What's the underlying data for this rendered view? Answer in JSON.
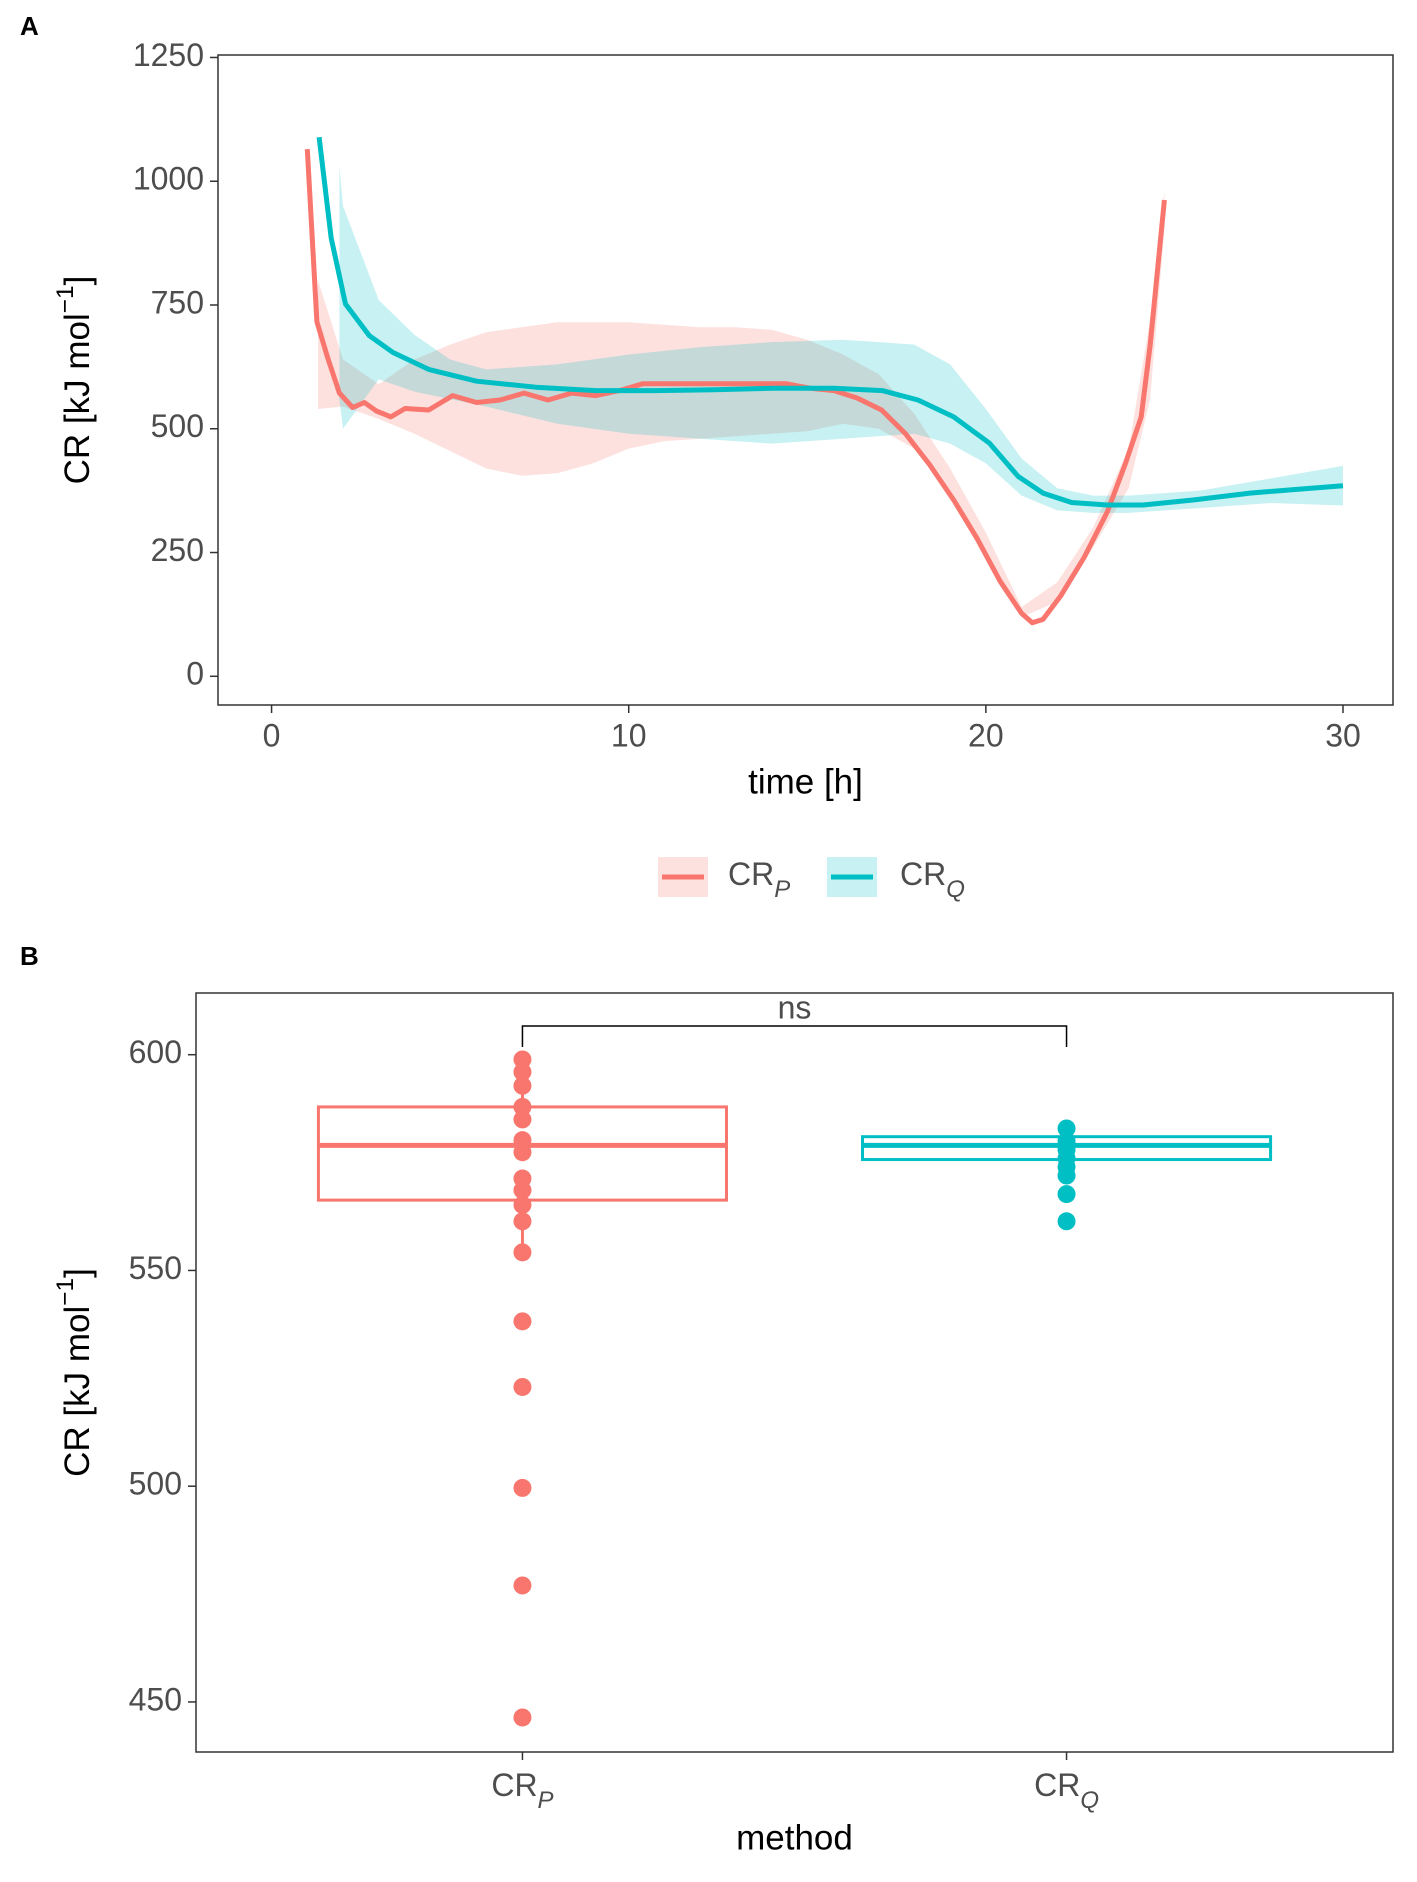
{
  "chart_data": [
    {
      "type": "line",
      "panel": "A",
      "x_label": "time [h]",
      "y_label": [
        "CR [kJ mol",
        "−1",
        "]"
      ],
      "xlim": [
        -1.5,
        31.4
      ],
      "ylim": [
        -58,
        1255
      ],
      "xticks": [
        0,
        10,
        20,
        30
      ],
      "yticks": [
        0,
        250,
        500,
        750,
        1000,
        1250
      ],
      "grid": false,
      "legend": "bottom",
      "series": [
        {
          "name": [
            "CR",
            "P"
          ],
          "color": "#f8766d",
          "x": [
            1.0,
            1.27,
            1.57,
            1.9,
            2.27,
            2.6,
            2.93,
            3.34,
            3.74,
            4.4,
            5.07,
            5.74,
            6.4,
            7.07,
            7.74,
            8.4,
            9.08,
            9.74,
            10.4,
            11.08,
            11.74,
            12.4,
            13.08,
            13.75,
            14.4,
            15.08,
            15.75,
            16.4,
            17.08,
            17.75,
            18.42,
            19.1,
            19.75,
            20.4,
            21.0,
            21.3,
            21.6,
            22.1,
            22.75,
            23.4,
            23.9,
            24.35,
            24.6,
            25.0
          ],
          "values": [
            1065,
            716,
            644,
            572,
            543,
            553,
            536,
            524,
            541,
            538,
            567,
            553,
            558,
            572,
            558,
            572,
            567,
            577,
            591,
            591,
            591,
            591,
            591,
            591,
            591,
            582,
            577,
            562,
            538,
            490,
            428,
            356,
            279,
            192,
            127,
            108,
            115,
            163,
            240,
            332,
            428,
            524,
            668,
            962
          ],
          "band": {
            "x": [
              1.3,
              2,
              3,
              4,
              5,
              6,
              7,
              8,
              9,
              10,
              11,
              12,
              13,
              14,
              15,
              16,
              17,
              18,
              19,
              20,
              21,
              22,
              23,
              24,
              24.6,
              25
            ],
            "lower": [
              540,
              545,
              520,
              490,
              455,
              420,
              405,
              410,
              430,
              460,
              475,
              480,
              485,
              490,
              495,
              510,
              500,
              460,
              370,
              250,
              120,
              150,
              260,
              380,
              560,
              900
            ],
            "upper": [
              800,
              640,
              590,
              640,
              670,
              695,
              705,
              715,
              715,
              715,
              710,
              705,
              705,
              700,
              680,
              650,
              610,
              530,
              420,
              290,
              140,
              190,
              300,
              460,
              720,
              980
            ]
          }
        },
        {
          "name": [
            "CR",
            "Q"
          ],
          "color": "#00bfc4",
          "x": [
            1.33,
            1.67,
            2.07,
            2.74,
            3.4,
            4.4,
            5.74,
            7.4,
            9.08,
            10.75,
            12.4,
            14.08,
            15.75,
            17.1,
            18.1,
            19.1,
            20.1,
            20.9,
            21.6,
            22.4,
            23.4,
            24.4,
            25.8,
            27.4,
            29.1,
            30.0
          ],
          "values": [
            1089,
            885,
            752,
            688,
            654,
            620,
            596,
            584,
            577,
            577,
            579,
            582,
            582,
            577,
            558,
            524,
            471,
            404,
            370,
            351,
            346,
            346,
            356,
            370,
            380,
            385
          ],
          "band": {
            "x": [
              1.9,
              2,
              3,
              4,
              5,
              6,
              8,
              10,
              12,
              14,
              16,
              18,
              19,
              20,
              21,
              22,
              23,
              24,
              26,
              28,
              30
            ],
            "lower": [
              560,
              500,
              600,
              575,
              560,
              545,
              510,
              490,
              480,
              470,
              480,
              490,
              470,
              430,
              365,
              335,
              330,
              330,
              340,
              350,
              345
            ],
            "upper": [
              1030,
              950,
              760,
              690,
              640,
              620,
              630,
              650,
              665,
              675,
              680,
              670,
              630,
              540,
              440,
              380,
              365,
              365,
              375,
              400,
              425
            ]
          }
        }
      ]
    },
    {
      "type": "box",
      "panel": "B",
      "x_label": "method",
      "y_label": [
        "CR [kJ mol",
        "−1",
        "]"
      ],
      "ylim": [
        438.4,
        614.3
      ],
      "yticks": [
        450,
        500,
        550,
        600
      ],
      "grid": false,
      "annotation": "ns",
      "series": [
        {
          "name": [
            "CR",
            "P"
          ],
          "color": "#f8766d",
          "box": {
            "whisker_low": 554.2,
            "q1": 566.3,
            "median": 579,
            "q3": 587.9,
            "whisker_high": 598.9
          },
          "points": [
            598.9,
            596,
            592.8,
            587.9,
            585,
            580.2,
            577.4,
            571.3,
            568.6,
            565.2,
            561.4,
            554.2,
            538.2,
            523,
            499.6,
            477,
            446.4
          ]
        },
        {
          "name": [
            "CR",
            "Q"
          ],
          "color": "#00bfc4",
          "box": {
            "whisker_low": 572,
            "q1": 575.7,
            "median": 579,
            "q3": 581,
            "whisker_high": 582.9
          },
          "points": [
            582.9,
            580,
            578,
            576,
            574,
            572,
            567.7,
            561.4
          ]
        }
      ]
    }
  ]
}
